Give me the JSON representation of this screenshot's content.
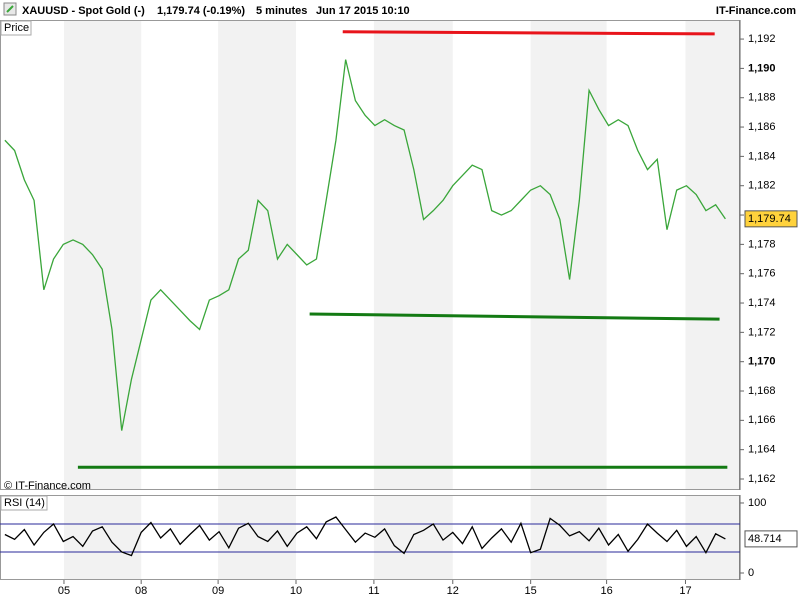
{
  "header": [
    "XAUUSD - Spot Gold (-)",
    "1,179.74 (-0.19%)",
    "5 minutes",
    "Jun 17 2015 10:10"
  ],
  "brand": "IT-Finance.com",
  "chart_data": [
    {
      "type": "line",
      "label": "Price",
      "watermark": "© IT-Finance.com",
      "color": "#3aa63a",
      "values": [
        1185.1,
        1184.4,
        1182.4,
        1181,
        1174.9,
        1177,
        1178,
        1178.3,
        1178,
        1177.3,
        1176.3,
        1172.2,
        1165.3,
        1168.8,
        1171.5,
        1174.2,
        1174.9,
        1174.2,
        1173.5,
        1172.8,
        1172.2,
        1174.2,
        1174.5,
        1174.9,
        1177,
        1177.6,
        1181,
        1180.3,
        1177,
        1178,
        1177.3,
        1176.6,
        1177,
        1181,
        1185.1,
        1190.6,
        1187.8,
        1186.8,
        1186.1,
        1186.5,
        1186.1,
        1185.8,
        1183.1,
        1179.7,
        1180.3,
        1181,
        1182,
        1182.7,
        1183.4,
        1183.1,
        1180.3,
        1180,
        1180.3,
        1181,
        1181.7,
        1182,
        1181.4,
        1179.7,
        1175.6,
        1181,
        1188.5,
        1187.2,
        1186.1,
        1186.5,
        1186.1,
        1184.4,
        1183.1,
        1183.8,
        1179,
        1181.7,
        1182,
        1181.4,
        1180.3,
        1180.7,
        1179.74
      ],
      "last_value": {
        "value": 1179.74,
        "label": "1,179.74"
      },
      "xlim": [
        0,
        76
      ],
      "ylim": [
        1161.25,
        1193.3
      ],
      "yticks": [
        {
          "value": 1162,
          "label": "1,162"
        },
        {
          "value": 1164,
          "label": "1,164"
        },
        {
          "value": 1166,
          "label": "1,166"
        },
        {
          "value": 1168,
          "label": "1,168"
        },
        {
          "value": 1170,
          "label": "1,170"
        },
        {
          "value": 1172,
          "label": "1,172"
        },
        {
          "value": 1174,
          "label": "1,174"
        },
        {
          "value": 1176,
          "label": "1,176"
        },
        {
          "value": 1178,
          "label": "1,178"
        },
        {
          "value": 1180,
          "label": "1,180"
        },
        {
          "value": 1182,
          "label": "1,182"
        },
        {
          "value": 1184,
          "label": "1,184"
        },
        {
          "value": 1186,
          "label": "1,186"
        },
        {
          "value": 1188,
          "label": "1,188"
        },
        {
          "value": 1190,
          "label": "1,190"
        },
        {
          "value": 1192,
          "label": "1,192"
        }
      ],
      "trendlines": [
        {
          "color": "#e8141b",
          "x": [
            35.2,
            73.4
          ],
          "values": [
            1192.5,
            1192.35
          ]
        },
        {
          "color": "#137a13",
          "x": [
            31.8,
            73.9
          ],
          "values": [
            1173.25,
            1172.9
          ]
        },
        {
          "color": "#137a13",
          "x": [
            8,
            74.7
          ],
          "values": [
            1162.8,
            1162.8
          ]
        }
      ]
    },
    {
      "type": "line",
      "label": "RSI (14)",
      "color": "#000000",
      "values": [
        55,
        48,
        62,
        40,
        58,
        70,
        45,
        52,
        38,
        60,
        66,
        44,
        30,
        25,
        58,
        72,
        50,
        63,
        41,
        55,
        68,
        47,
        59,
        36,
        64,
        71,
        52,
        45,
        60,
        38,
        57,
        66,
        49,
        73,
        80,
        62,
        44,
        57,
        51,
        63,
        39,
        28,
        55,
        61,
        70,
        47,
        58,
        42,
        66,
        35,
        50,
        63,
        44,
        71,
        29,
        34,
        78,
        68,
        53,
        59,
        46,
        64,
        40,
        55,
        31,
        48,
        70,
        57,
        45,
        61,
        38,
        52,
        29,
        56,
        48.714
      ],
      "last_value": {
        "value": 48.714,
        "label": "48.714"
      },
      "levels": [
        30,
        70
      ],
      "level_color": "#2a2a9a",
      "xlim": [
        0,
        76
      ],
      "ylim": [
        -10,
        111.4
      ],
      "yticks": [
        0,
        100
      ],
      "xticks": [
        {
          "value": 6.57,
          "label": "05"
        },
        {
          "value": 14.5,
          "label": "08"
        },
        {
          "value": 22.4,
          "label": "09"
        },
        {
          "value": 30.4,
          "label": "10"
        },
        {
          "value": 38.4,
          "label": "11"
        },
        {
          "value": 46.5,
          "label": "12"
        },
        {
          "value": 54.5,
          "label": "15"
        },
        {
          "value": 62.3,
          "label": "16"
        },
        {
          "value": 70.4,
          "label": "17"
        }
      ]
    }
  ]
}
